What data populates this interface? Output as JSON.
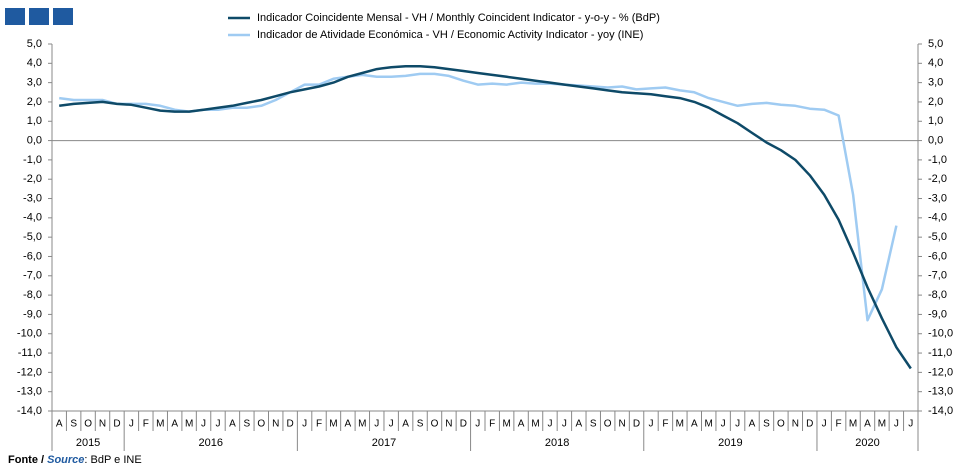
{
  "chart_data": {
    "type": "line",
    "categories": [
      "A",
      "S",
      "O",
      "N",
      "D",
      "J",
      "F",
      "M",
      "A",
      "M",
      "J",
      "J",
      "A",
      "S",
      "O",
      "N",
      "D",
      "J",
      "F",
      "M",
      "A",
      "M",
      "J",
      "J",
      "A",
      "S",
      "O",
      "N",
      "D",
      "J",
      "F",
      "M",
      "A",
      "M",
      "J",
      "J",
      "A",
      "S",
      "O",
      "N",
      "D",
      "J",
      "F",
      "M",
      "A",
      "M",
      "J",
      "J",
      "A",
      "S",
      "O",
      "N",
      "D",
      "J",
      "F",
      "M",
      "A",
      "M",
      "J",
      "J"
    ],
    "years": [
      "2015",
      "2016",
      "2017",
      "2018",
      "2019",
      "2020"
    ],
    "series": [
      {
        "name": "Indicador Coincidente Mensal - VH / Monthly Coincident Indicator - y-o-y - % (BdP)",
        "color": "#0e4a68",
        "values": [
          1.8,
          1.9,
          1.95,
          2.0,
          1.9,
          1.85,
          1.7,
          1.55,
          1.5,
          1.5,
          1.6,
          1.7,
          1.8,
          1.95,
          2.1,
          2.3,
          2.5,
          2.65,
          2.8,
          3.0,
          3.3,
          3.5,
          3.7,
          3.8,
          3.85,
          3.85,
          3.8,
          3.7,
          3.6,
          3.5,
          3.4,
          3.3,
          3.2,
          3.1,
          3.0,
          2.9,
          2.8,
          2.7,
          2.6,
          2.5,
          2.45,
          2.4,
          2.3,
          2.2,
          2.0,
          1.7,
          1.3,
          0.9,
          0.4,
          -0.1,
          -0.5,
          -1.0,
          -1.8,
          -2.8,
          -4.1,
          -5.8,
          -7.6,
          -9.2,
          -10.7,
          -11.8
        ]
      },
      {
        "name": "Indicador de Atividade Económica - VH / Economic Activity Indicator - yoy (INE)",
        "color": "#9fcbf2",
        "values": [
          2.2,
          2.1,
          2.1,
          2.1,
          1.9,
          1.9,
          1.9,
          1.8,
          1.6,
          1.5,
          1.6,
          1.6,
          1.7,
          1.7,
          1.8,
          2.1,
          2.5,
          2.9,
          2.9,
          3.2,
          3.3,
          3.4,
          3.3,
          3.3,
          3.35,
          3.45,
          3.45,
          3.35,
          3.1,
          2.9,
          2.95,
          2.9,
          3.0,
          2.95,
          2.95,
          2.9,
          2.85,
          2.8,
          2.75,
          2.8,
          2.65,
          2.7,
          2.75,
          2.6,
          2.5,
          2.2,
          2.0,
          1.8,
          1.9,
          1.95,
          1.85,
          1.8,
          1.65,
          1.6,
          1.3,
          -2.8,
          -9.3,
          -7.7,
          -4.4,
          null
        ]
      }
    ],
    "ylim": [
      -14,
      5
    ],
    "yticks": [
      {
        "value": 5,
        "label": "5,0"
      },
      {
        "value": 4,
        "label": "4,0"
      },
      {
        "value": 3,
        "label": "3,0"
      },
      {
        "value": 2,
        "label": "2,0"
      },
      {
        "value": 1,
        "label": "1,0"
      },
      {
        "value": 0,
        "label": "0,0"
      },
      {
        "value": -1,
        "label": "-1,0"
      },
      {
        "value": -2,
        "label": "-2,0"
      },
      {
        "value": -3,
        "label": "-3,0"
      },
      {
        "value": -4,
        "label": "-4,0"
      },
      {
        "value": -5,
        "label": "-5,0"
      },
      {
        "value": -6,
        "label": "-6,0"
      },
      {
        "value": -7,
        "label": "-7,0"
      },
      {
        "value": -8,
        "label": "-8,0"
      },
      {
        "value": -9,
        "label": "-9,0"
      },
      {
        "value": -10,
        "label": "-10,0"
      },
      {
        "value": -11,
        "label": "-11,0"
      },
      {
        "value": -12,
        "label": "-12,0"
      },
      {
        "value": -13,
        "label": "-13,0"
      },
      {
        "value": -14,
        "label": "-14,0"
      }
    ],
    "y2lim": [
      -14,
      5
    ],
    "y2ticks": [
      {
        "value": 5,
        "label": "5,0"
      },
      {
        "value": 4,
        "label": "4,0"
      },
      {
        "value": 3,
        "label": "3,0"
      },
      {
        "value": 2,
        "label": "2,0"
      },
      {
        "value": 1,
        "label": "1,0"
      },
      {
        "value": 0,
        "label": "0,0"
      },
      {
        "value": -1,
        "label": "-1,0"
      },
      {
        "value": -2,
        "label": "-2,0"
      },
      {
        "value": -3,
        "label": "-3,0"
      },
      {
        "value": -4,
        "label": "-4,0"
      },
      {
        "value": -5,
        "label": "-5,0"
      },
      {
        "value": -6,
        "label": "-6,0"
      },
      {
        "value": -7,
        "label": "-7,0"
      },
      {
        "value": -8,
        "label": "-8,0"
      },
      {
        "value": -9,
        "label": "-9,0"
      },
      {
        "value": -10,
        "label": "-10,0"
      },
      {
        "value": -11,
        "label": "-11,0"
      },
      {
        "value": -12,
        "label": "-12,0"
      },
      {
        "value": -13,
        "label": "-13,0"
      },
      {
        "value": -14,
        "label": "-14,0"
      }
    ],
    "source": {
      "prefix": "Fonte /",
      "label": "Source",
      "text": ": BdP e INE"
    }
  }
}
